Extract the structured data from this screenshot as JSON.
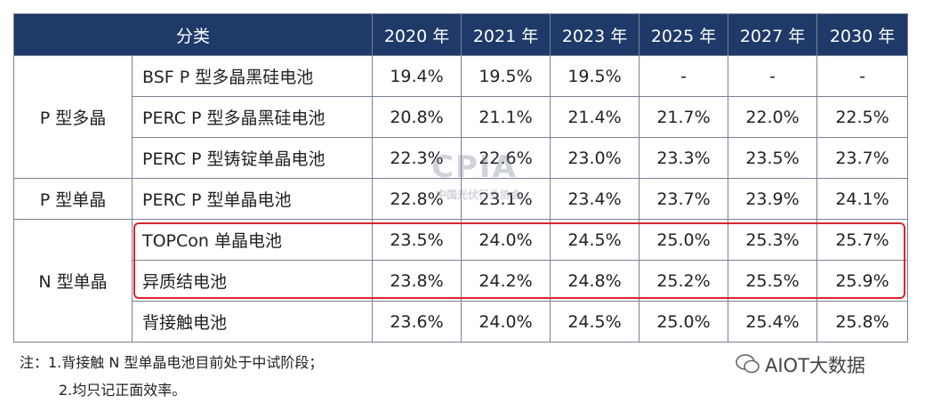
{
  "table": {
    "header": [
      "分类",
      "2020 年",
      "2021 年",
      "2023 年",
      "2025 年",
      "2027 年",
      "2030 年"
    ],
    "groups": [
      {
        "label": "P 型多晶",
        "rows": [
          [
            "BSF P 型多晶黑硅电池",
            "19.4%",
            "19.5%",
            "19.5%",
            "-",
            "-",
            "-"
          ],
          [
            "PERC P 型多晶黑硅电池",
            "20.8%",
            "21.1%",
            "21.4%",
            "21.7%",
            "22.0%",
            "22.5%"
          ],
          [
            "PERC P 型铸锭单晶电池",
            "22.3%",
            "22.6%",
            "23.0%",
            "23.3%",
            "23.5%",
            "23.7%"
          ]
        ]
      },
      {
        "label": "P 型单晶",
        "rows": [
          [
            "PERC P 型单晶电池",
            "22.8%",
            "23.1%",
            "23.4%",
            "23.7%",
            "23.9%",
            "24.1%"
          ]
        ]
      },
      {
        "label": "N 型单晶",
        "rows": [
          [
            "TOPCon 单晶电池",
            "23.5%",
            "24.0%",
            "24.5%",
            "25.0%",
            "25.3%",
            "25.7%"
          ],
          [
            "异质结电池",
            "23.8%",
            "24.2%",
            "24.8%",
            "25.2%",
            "25.5%",
            "25.9%"
          ],
          [
            "背接触电池",
            "23.6%",
            "24.0%",
            "24.5%",
            "25.0%",
            "25.4%",
            "25.8%"
          ]
        ]
      }
    ]
  },
  "notes": [
    "注：1.背接触  N 型单晶电池目前处于中试阶段；",
    "2.均只记正面效率。"
  ],
  "watermark": {
    "logo": "CPIA",
    "org": "中国光伏行业协会",
    "account": "AIOT大数据"
  }
}
